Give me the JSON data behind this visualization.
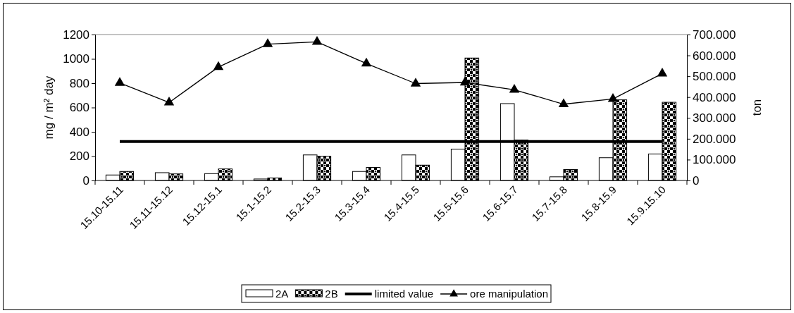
{
  "chart_data": {
    "type": "bar",
    "ylabel": "mg / m² day",
    "y2label": "ton",
    "categories": [
      "15.10-15.11",
      "15.11-15.12",
      "15.12-15.1",
      "15.1-15.2",
      "15.2-15.3",
      "15.3-15.4",
      "15.4-15.5",
      "15.5-15.6",
      "15.6-15.7",
      "15.7-15.8",
      "15.8-15.9",
      "15.9.15.10"
    ],
    "series": [
      {
        "name": "2A",
        "color": "#ffffff",
        "values": [
          45,
          64,
          56,
          12,
          210,
          74,
          210,
          258,
          632,
          30,
          187,
          218
        ]
      },
      {
        "name": "2B",
        "color": "#000000",
        "values": [
          74,
          54,
          95,
          21,
          200,
          107,
          126,
          1007,
          332,
          90,
          663,
          643
        ]
      },
      {
        "name": "limited value",
        "type": "line",
        "color": "#000000",
        "marker": "none",
        "values": [
          320,
          320,
          320,
          320,
          320,
          320,
          320,
          320,
          320,
          320,
          320,
          320
        ]
      },
      {
        "name": "ore manipulation",
        "type": "line",
        "axis": "y2",
        "color": "#000000",
        "marker": "triangle",
        "values": [
          468,
          374,
          544,
          654,
          665,
          561,
          465,
          470,
          435,
          366,
          391,
          513
        ]
      }
    ],
    "ylim": [
      0,
      1200
    ],
    "yticks": [
      0,
      200,
      400,
      600,
      800,
      1000,
      1200
    ],
    "y2lim": [
      0,
      700
    ],
    "y2ticks": [
      {
        "value": 0,
        "label": "0"
      },
      {
        "value": 100,
        "label": "100.000"
      },
      {
        "value": 200,
        "label": "200.000"
      },
      {
        "value": 300,
        "label": "300.000"
      },
      {
        "value": 400,
        "label": "400.000"
      },
      {
        "value": 500,
        "label": "500.000"
      },
      {
        "value": 600,
        "label": "600.000"
      },
      {
        "value": 700,
        "label": "700.000"
      }
    ],
    "grid": false,
    "legend": "bottom"
  }
}
